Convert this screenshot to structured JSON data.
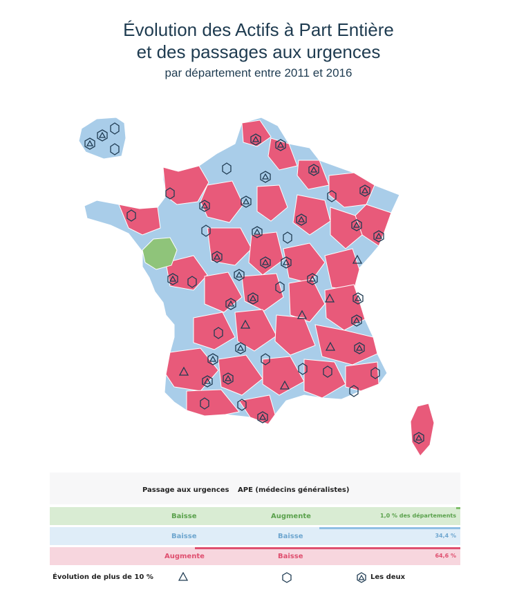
{
  "title": {
    "line1": "Évolution des Actifs à Part Entière",
    "line2": "et des passages aux urgences",
    "line3": "par département entre 2011 et 2016"
  },
  "colors": {
    "both_down": "#a9cde9",
    "urgences_up_ape_down": "#e85a7a",
    "urgences_down_ape_up": "#8fc47a",
    "marker": "#1f3b52"
  },
  "legend": {
    "header": {
      "col1": "Passage aux urgences",
      "col2": "APE (médecins généralistes)"
    },
    "rows": [
      {
        "urgences": "Baisse",
        "ape": "Augmente",
        "share_text": "1,0 % des départements",
        "share": 1.0
      },
      {
        "urgences": "Baisse",
        "ape": "Baisse",
        "share_text": "34,4 %",
        "share": 34.4
      },
      {
        "urgences": "Augmente",
        "ape": "Baisse",
        "share_text": "64,6 %",
        "share": 64.6
      }
    ],
    "footer": {
      "label": "Évolution de plus de 10 %",
      "triangle_icon": "triangle-icon",
      "hexagon_icon": "hexagon-icon",
      "both_icon": "triangle-in-hexagon-icon",
      "both_label": "Les deux"
    }
  }
}
